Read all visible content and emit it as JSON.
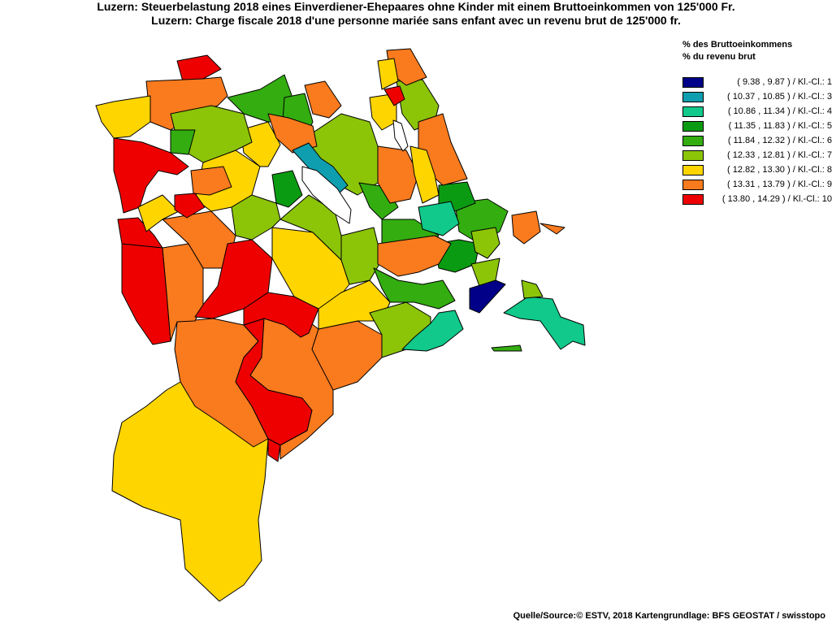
{
  "title": {
    "line1": "Luzern: Steuerbelastung 2018 eines Einverdiener-Ehepaares ohne Kinder mit einem Bruttoeinkommen von 125'000 Fr.",
    "line2": "Luzern: Charge fiscale 2018 d'une personne mariée sans enfant avec un revenu brut de 125'000 fr."
  },
  "legend": {
    "title_de": "% des Bruttoeinkommens",
    "title_fr": "% du revenu brut",
    "classes": [
      {
        "label": "( 9.38 , 9.87 ) / Kl.-Cl.: 1",
        "color": "#000088"
      },
      {
        "label": "( 10.37 , 10.85 ) / Kl.-Cl.: 3",
        "color": "#0e9eaf"
      },
      {
        "label": "( 10.86 , 11.34 ) / Kl.-Cl.: 4",
        "color": "#10c98a"
      },
      {
        "label": "( 11.35 , 11.83 ) / Kl.-Cl.: 5",
        "color": "#0b9b12"
      },
      {
        "label": "( 11.84 , 12.32 ) / Kl.-Cl.: 6",
        "color": "#33ad10"
      },
      {
        "label": "( 12.33 , 12.81 ) / Kl.-Cl.: 7",
        "color": "#8cc408"
      },
      {
        "label": "( 12.82 , 13.30 ) / Kl.-Cl.: 8",
        "color": "#ffd500"
      },
      {
        "label": "( 13.31 , 13.79 ) / Kl.-Cl.: 9",
        "color": "#fa7a1e"
      },
      {
        "label": "( 13.80 , 14.29 ) / Kl.-Cl.: 10",
        "color": "#ee0000"
      }
    ]
  },
  "source": "Quelle/Source:© ESTV, 2018 Kartengrundlage: BFS GEOSTAT / swisstopo"
}
